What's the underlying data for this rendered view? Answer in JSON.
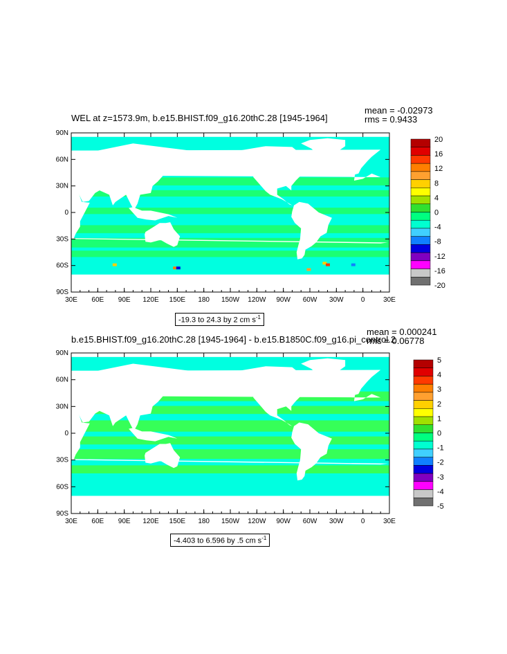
{
  "panels": [
    {
      "title": "WEL at z=1573.9m, b.e15.BHIST.f09_g16.20thC.28 [1945-1964]",
      "mean_text": "mean = -0.02973",
      "rms_text": "rms = 0.9433",
      "range_text": "-19.3 to 24.3 by 2 cm s",
      "range_sup": "-1",
      "lat_ticks": [
        "90N",
        "60N",
        "30N",
        "0",
        "30S",
        "60S",
        "90S"
      ],
      "lon_ticks": [
        "30E",
        "60E",
        "90E",
        "120E",
        "150E",
        "180",
        "150W",
        "120W",
        "90W",
        "60W",
        "30W",
        "0",
        "30E"
      ],
      "colorbar": {
        "labels": [
          "20",
          "16",
          "12",
          "8",
          "4",
          "0",
          "-4",
          "-8",
          "-12",
          "-16",
          "-20"
        ],
        "colors": [
          "#b40000",
          "#e00000",
          "#ff3a00",
          "#ff7f00",
          "#ffa030",
          "#ffd000",
          "#ffff00",
          "#a0e000",
          "#30e030",
          "#00ff80",
          "#00ffd0",
          "#40d0ff",
          "#1080ff",
          "#0000e0",
          "#8000c0",
          "#ff00ff",
          "#c8c8c8",
          "#707070"
        ]
      }
    },
    {
      "title": "b.e15.BHIST.f09_g16.20thC.28 [1945-1964] - b.e15.B1850C.f09_g16.pi_control.2",
      "mean_text": "mean = 0.000241",
      "rms_text": "rms = 0.06778",
      "range_text": "-4.403 to 6.596 by .5 cm s",
      "range_sup": "-1",
      "lat_ticks": [
        "90N",
        "60N",
        "30N",
        "0",
        "30S",
        "60S",
        "90S"
      ],
      "lon_ticks": [
        "30E",
        "60E",
        "90E",
        "120E",
        "150E",
        "180",
        "150W",
        "120W",
        "90W",
        "60W",
        "30W",
        "0",
        "30E"
      ],
      "colorbar": {
        "labels": [
          "5",
          "4",
          "3",
          "2",
          "1",
          "0",
          "-1",
          "-2",
          "-3",
          "-4",
          "-5"
        ],
        "colors": [
          "#b40000",
          "#e00000",
          "#ff3a00",
          "#ff7f00",
          "#ffa030",
          "#ffd000",
          "#ffff00",
          "#a0e000",
          "#30e030",
          "#00ff80",
          "#00ffd0",
          "#40d0ff",
          "#1080ff",
          "#0000e0",
          "#8000c0",
          "#ff00ff",
          "#c8c8c8",
          "#707070"
        ]
      }
    }
  ],
  "ocean_colors": {
    "cyan": "#00ffe0",
    "green": "#20ff60",
    "lightgreen": "#40ff40"
  }
}
